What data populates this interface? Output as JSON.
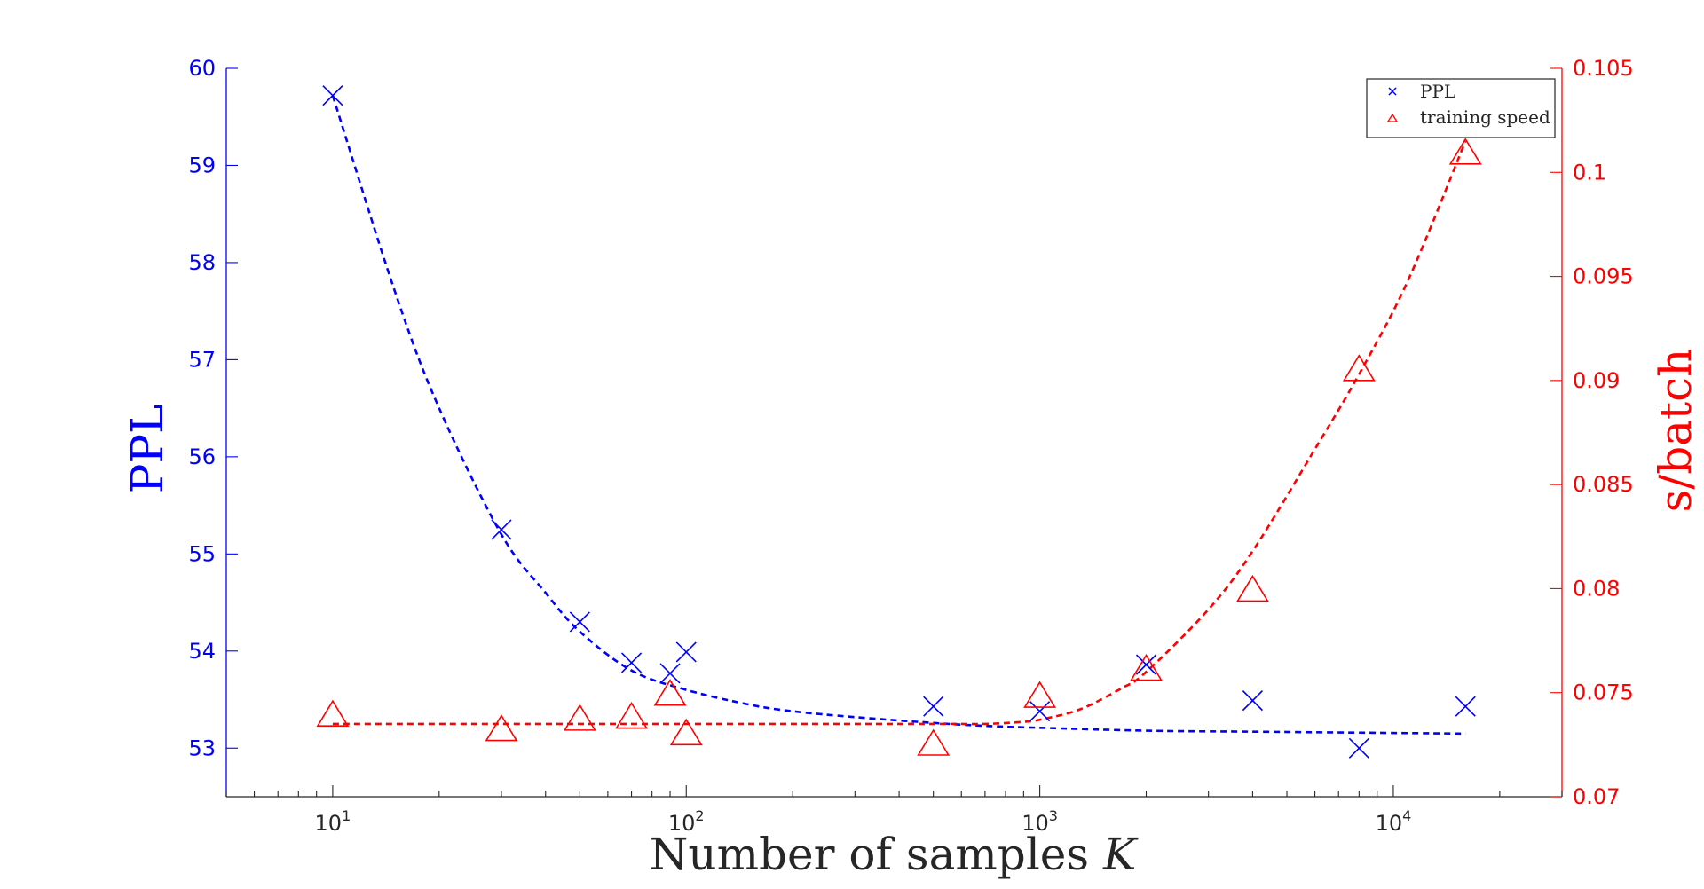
{
  "chart_data": {
    "type": "scatter",
    "title": "",
    "xlabel": "Number of samples K",
    "xlabel_main": "Number of samples ",
    "xlabel_italic": "K",
    "ylabel_left": "PPL",
    "ylabel_right": "s/batch",
    "x_scale": "log",
    "xlim": [
      5,
      30000
    ],
    "ylim_left": [
      52.5,
      60
    ],
    "ylim_right": [
      0.07,
      0.105
    ],
    "x_ticks": [
      {
        "value": 10,
        "base": "10",
        "exp": "1"
      },
      {
        "value": 100,
        "base": "10",
        "exp": "2"
      },
      {
        "value": 1000,
        "base": "10",
        "exp": "3"
      },
      {
        "value": 10000,
        "base": "10",
        "exp": "4"
      }
    ],
    "y_left_ticks": [
      "53",
      "54",
      "55",
      "56",
      "57",
      "58",
      "59",
      "60"
    ],
    "y_right_ticks": [
      "0.07",
      "0.075",
      "0.08",
      "0.085",
      "0.09",
      "0.095",
      "0.1",
      "0.105"
    ],
    "grid": false,
    "legend_position": "top-right",
    "colors": {
      "ppl": "#0000ff",
      "speed": "#ff0000",
      "axis_text": "#262626"
    },
    "series": [
      {
        "name": "PPL",
        "axis": "left",
        "marker": "x",
        "x": [
          10,
          30,
          50,
          70,
          90,
          100,
          500,
          1000,
          2000,
          4000,
          8000,
          16000
        ],
        "y": [
          59.72,
          55.25,
          54.3,
          53.88,
          53.77,
          53.99,
          53.43,
          53.38,
          53.86,
          53.49,
          53.0,
          53.43
        ]
      },
      {
        "name": "training speed",
        "axis": "right",
        "marker": "triangle",
        "x": [
          10,
          30,
          50,
          70,
          90,
          100,
          500,
          1000,
          2000,
          4000,
          8000,
          16000
        ],
        "y": [
          0.074,
          0.0733,
          0.0738,
          0.0739,
          0.075,
          0.0731,
          0.0726,
          0.0749,
          0.0762,
          0.08,
          0.0906,
          0.101
        ]
      }
    ],
    "fit_lines": [
      {
        "series": "PPL",
        "axis": "left",
        "style": "dashed",
        "x": [
          10,
          15,
          20,
          30,
          40,
          50,
          70,
          100,
          150,
          200,
          300,
          500,
          700,
          1000,
          2000,
          4000,
          8000,
          16000
        ],
        "y": [
          59.72,
          57.7,
          56.5,
          55.2,
          54.6,
          54.2,
          53.8,
          53.6,
          53.45,
          53.38,
          53.32,
          53.26,
          53.23,
          53.21,
          53.18,
          53.17,
          53.16,
          53.15
        ]
      },
      {
        "series": "training speed",
        "axis": "right",
        "style": "dashed",
        "x": [
          10,
          100,
          500,
          700,
          900,
          1000,
          1300,
          1700,
          2000,
          3000,
          4000,
          6000,
          8000,
          11000,
          16000
        ],
        "y": [
          0.0735,
          0.0735,
          0.0735,
          0.0735,
          0.0736,
          0.0737,
          0.0742,
          0.0752,
          0.076,
          0.079,
          0.0818,
          0.0867,
          0.0903,
          0.0948,
          0.1015
        ]
      }
    ]
  }
}
